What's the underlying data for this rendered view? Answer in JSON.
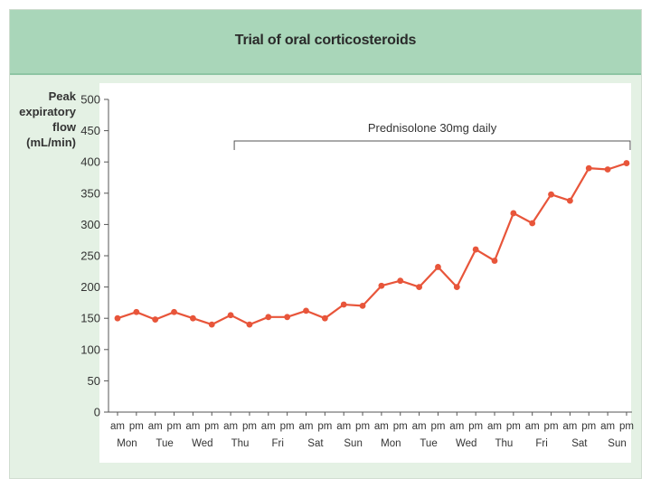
{
  "chart_data": {
    "type": "line",
    "title": "Trial of oral corticosteroids",
    "ylabel": "Peak\nexpiratory\nflow\n(mL/min)",
    "ylim": [
      0,
      500
    ],
    "yticks": [
      0,
      50,
      100,
      150,
      200,
      250,
      300,
      350,
      400,
      450,
      500
    ],
    "x_periods": [
      "am",
      "pm",
      "am",
      "pm",
      "am",
      "pm",
      "am",
      "pm",
      "am",
      "pm",
      "am",
      "pm",
      "am",
      "pm",
      "am",
      "pm",
      "am",
      "pm",
      "am",
      "pm",
      "am",
      "pm",
      "am",
      "pm",
      "am",
      "pm",
      "am",
      "pm"
    ],
    "x_days": [
      "Mon",
      "Tue",
      "Wed",
      "Thu",
      "Fri",
      "Sat",
      "Sun",
      "Mon",
      "Tue",
      "Wed",
      "Thu",
      "Fri",
      "Sat",
      "Sun"
    ],
    "series": [
      {
        "values": [
          150,
          160,
          148,
          160,
          150,
          140,
          155,
          140,
          152,
          152,
          162,
          150,
          172,
          170,
          202,
          210,
          200,
          232,
          200,
          260,
          242,
          318,
          302,
          348,
          338,
          390,
          388,
          398
        ]
      }
    ],
    "annotation": {
      "label": "Prednisolone 30mg daily",
      "start_index": 6,
      "end_index": 27
    },
    "line_color": "#e8553a",
    "grid": false
  }
}
